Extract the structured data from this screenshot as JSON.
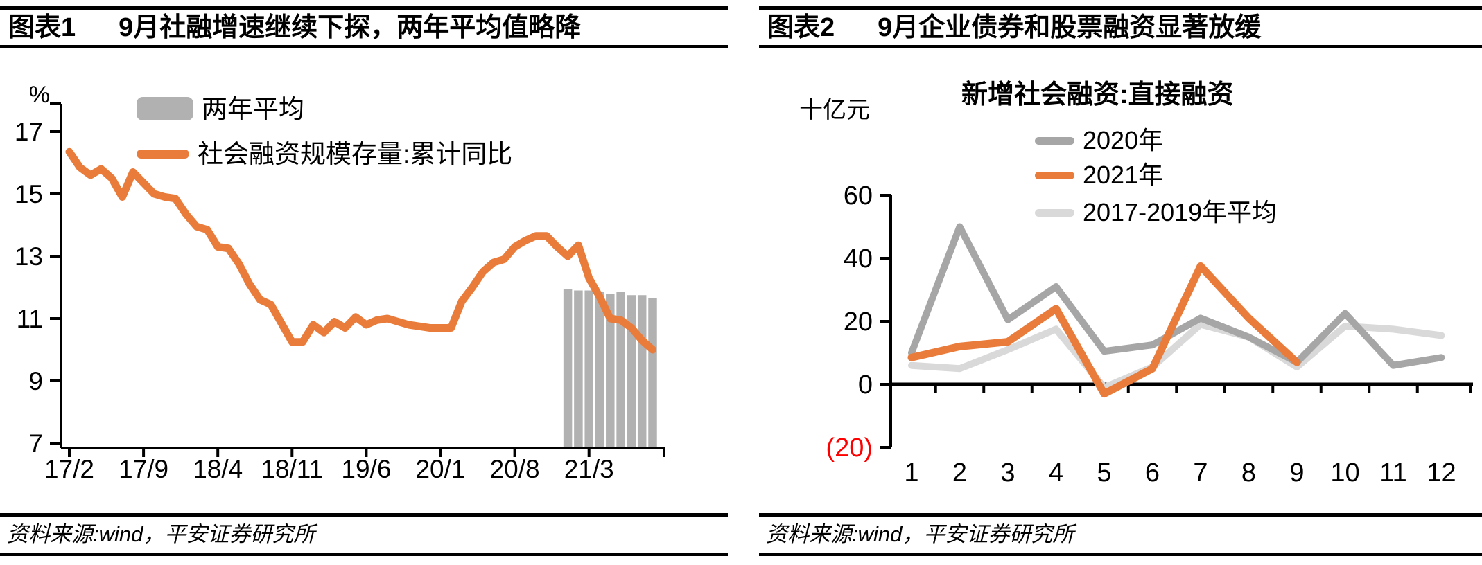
{
  "figures": [
    {
      "label": "图表1",
      "title": "9月社融增速继续下探，两年平均值略降",
      "unit_label": "%",
      "source": "资料来源:wind，平安证券研究所",
      "legend": [
        {
          "name": "两年平均",
          "type": "bar",
          "color": "#B1B1B1"
        },
        {
          "name": "社会融资规模存量:累计同比",
          "type": "line",
          "color": "#E97C3B"
        }
      ]
    },
    {
      "label": "图表2",
      "title": "9月企业债券和股票融资显著放缓",
      "unit_label": "十亿元",
      "chart_title": "新增社会融资:直接融资",
      "source": "资料来源:wind，平安证券研究所",
      "legend": [
        {
          "name": "2020年",
          "type": "line",
          "color": "#A6A6A6"
        },
        {
          "name": "2021年",
          "type": "line",
          "color": "#E97C3B"
        },
        {
          "name": "2017-2019年平均",
          "type": "line",
          "color": "#D9D9D9"
        }
      ]
    }
  ],
  "chart_data": [
    {
      "type": "line+bar",
      "title": "9月社融增速继续下探，两年平均值略降",
      "x_axis": {
        "tick_labels": [
          "17/2",
          "17/9",
          "18/4",
          "18/11",
          "19/6",
          "20/1",
          "20/8",
          "21/3"
        ],
        "months_per_tick": 7,
        "start": "17/2",
        "end": "21/9"
      },
      "y_axis": {
        "unit": "%",
        "ticks": [
          17,
          15,
          13,
          11,
          9,
          7
        ],
        "ylim": [
          7,
          17.8
        ]
      },
      "series": [
        {
          "name": "两年平均",
          "type": "bar",
          "color": "#B1B1B1",
          "start_index": 47,
          "values": [
            11.95,
            11.9,
            11.9,
            11.85,
            11.8,
            11.85,
            11.75,
            11.75,
            11.65
          ]
        },
        {
          "name": "社会融资规模存量:累计同比",
          "type": "line",
          "color": "#E97C3B",
          "width": 11,
          "values": [
            16.35,
            15.85,
            15.6,
            15.8,
            15.5,
            14.9,
            15.7,
            15.35,
            15.0,
            14.9,
            14.85,
            14.35,
            13.95,
            13.85,
            13.3,
            13.25,
            12.75,
            12.1,
            11.6,
            11.45,
            10.85,
            10.25,
            10.25,
            10.8,
            10.55,
            10.9,
            10.7,
            11.05,
            10.8,
            10.95,
            11.0,
            10.9,
            10.8,
            10.75,
            10.7,
            10.7,
            10.7,
            11.55,
            12.0,
            12.5,
            12.8,
            12.9,
            13.3,
            13.5,
            13.65,
            13.65,
            13.3,
            13.0,
            13.35,
            12.3,
            11.7,
            11.0,
            10.95,
            10.7,
            10.3,
            10.0
          ]
        }
      ]
    },
    {
      "type": "line",
      "title": "新增社会融资:直接融资",
      "categories": [
        "1",
        "2",
        "3",
        "4",
        "5",
        "6",
        "7",
        "8",
        "9",
        "10",
        "11",
        "12"
      ],
      "y_axis": {
        "unit": "十亿元",
        "ticks": [
          60,
          40,
          20,
          0,
          -20
        ],
        "tick_labels": [
          "60",
          "40",
          "20",
          "0",
          "(20)"
        ],
        "negative_color": "#FF0000",
        "ylim": [
          -20,
          60
        ]
      },
      "series": [
        {
          "name": "2017-2019年平均",
          "type": "line",
          "color": "#D9D9D9",
          "width": 10,
          "values": [
            6,
            5,
            11,
            17.5,
            -1,
            5.5,
            19,
            15,
            5.5,
            18.5,
            17.5,
            15.5
          ]
        },
        {
          "name": "2020年",
          "type": "line",
          "color": "#A6A6A6",
          "width": 10,
          "values": [
            10,
            50,
            20.5,
            31,
            10.5,
            12.5,
            21,
            15,
            7,
            22.5,
            6,
            8.5
          ]
        },
        {
          "name": "2021年",
          "type": "line",
          "color": "#E97C3B",
          "width": 11,
          "values": [
            8.5,
            12,
            13.5,
            24,
            -3,
            5,
            37.5,
            21,
            7
          ]
        }
      ]
    }
  ]
}
